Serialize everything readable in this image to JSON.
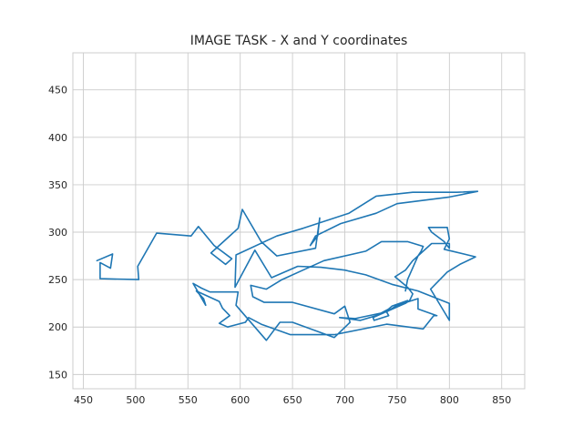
{
  "chart_data": {
    "type": "line",
    "title": "IMAGE TASK - X and Y coordinates",
    "xlabel": "",
    "ylabel": "",
    "xlim": [
      440,
      872
    ],
    "ylim": [
      135,
      489
    ],
    "xticks": [
      450,
      500,
      550,
      600,
      650,
      700,
      750,
      800,
      850
    ],
    "yticks": [
      150,
      200,
      250,
      300,
      350,
      400,
      450
    ],
    "grid": true,
    "colors": {
      "line": "#1f77b4",
      "grid": "#cccccc",
      "text": "#262626"
    },
    "series": [
      {
        "x": [
          463,
          478,
          476,
          466,
          466,
          503,
          502,
          520,
          553,
          560,
          575,
          592,
          586,
          572,
          598,
          602,
          620,
          635,
          672,
          676,
          674,
          667,
          672,
          696,
          730,
          750,
          800,
          827,
          807,
          765,
          730,
          704,
          660,
          635,
          596,
          595,
          614,
          630,
          655,
          677,
          700,
          720,
          745,
          770,
          800,
          800,
          782,
          798,
          810,
          825,
          795,
          800,
          798,
          780,
          783,
          795,
          800,
          800,
          783,
          765,
          758,
          748,
          760,
          765,
          762,
          758,
          727,
          728,
          742,
          740,
          760,
          745,
          742,
          730,
          715,
          695,
          710,
          740,
          750,
          770,
          770,
          788,
          785,
          775,
          740,
          690,
          648,
          620,
          608,
          605,
          588,
          580,
          590,
          583,
          580,
          558,
          565,
          567,
          555,
          563,
          571,
          598,
          596,
          625,
          638,
          650,
          690,
          705,
          700,
          690,
          650,
          623,
          612,
          610,
          625,
          640,
          660,
          680,
          720,
          735,
          760,
          775,
          773,
          770,
          760,
          758
        ],
        "y": [
          270,
          277,
          262,
          268,
          251,
          250,
          264,
          299,
          296,
          306,
          286,
          272,
          266,
          278,
          304,
          324,
          290,
          275,
          283,
          315,
          296,
          286,
          296,
          309,
          320,
          330,
          337,
          343,
          342,
          342,
          338,
          320,
          304,
          296,
          276,
          242,
          281,
          252,
          264,
          263,
          260,
          255,
          245,
          238,
          225,
          207,
          240,
          258,
          266,
          274,
          282,
          293,
          305,
          305,
          300,
          290,
          283,
          288,
          288,
          270,
          260,
          253,
          242,
          235,
          228,
          225,
          210,
          207,
          212,
          216,
          228,
          222,
          219,
          212,
          207,
          210,
          209,
          216,
          223,
          230,
          219,
          212,
          212,
          198,
          203,
          192,
          192,
          203,
          210,
          205,
          200,
          204,
          212,
          220,
          227,
          238,
          230,
          223,
          246,
          241,
          237,
          237,
          223,
          186,
          205,
          205,
          189,
          205,
          222,
          214,
          226,
          226,
          232,
          244,
          240,
          250,
          260,
          270,
          280,
          290,
          290,
          285,
          280,
          275,
          250,
          238
        ]
      }
    ]
  }
}
